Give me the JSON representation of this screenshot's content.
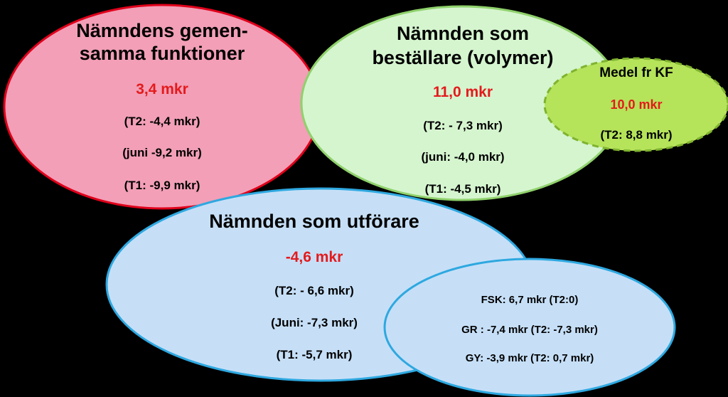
{
  "colors": {
    "background": "#000000",
    "amount_red": "#e41a1c",
    "gemensamma_fill": "#f29fb7",
    "gemensamma_stroke": "#e0001b",
    "bestallare_fill": "#d5f5cf",
    "bestallare_stroke": "#8fd16b",
    "medel_fill": "#b5e35a",
    "medel_stroke": "#7fb32f",
    "utforare_fill": "#c6dff7",
    "utforare_stroke": "#2ea8e0",
    "skolform_fill": "#c6dff7",
    "skolform_stroke": "#2ea8e0"
  },
  "gemensamma": {
    "title_line1": "Nämndens gemen-",
    "title_line2": "samma funktioner",
    "amount": "3,4 mkr",
    "lines": [
      "(T2: -4,4 mkr)",
      "(juni -9,2 mkr)",
      "(T1: -9,9 mkr)"
    ]
  },
  "bestallare": {
    "title_line1": "Nämnden som",
    "title_line2": "beställare (volymer)",
    "amount": "11,0 mkr",
    "lines": [
      "(T2: - 7,3 mkr)",
      "(juni: -4,0 mkr)",
      "(T1: -4,5 mkr)"
    ]
  },
  "medel": {
    "title": "Medel fr KF",
    "amount": "10,0 mkr",
    "line": "(T2: 8,8 mkr)"
  },
  "utforare": {
    "title": "Nämnden som utförare",
    "amount": "-4,6 mkr",
    "lines": [
      "(T2: - 6,6 mkr)",
      "(Juni: -7,3 mkr)",
      "(T1: -5,7 mkr)"
    ]
  },
  "skolformer": {
    "lines": [
      "FSK: 6,7 mkr (T2:0)",
      "GR : -7,4 mkr (T2: -7,3 mkr)",
      "GY: -3,9 mkr (T2: 0,7 mkr)"
    ]
  }
}
